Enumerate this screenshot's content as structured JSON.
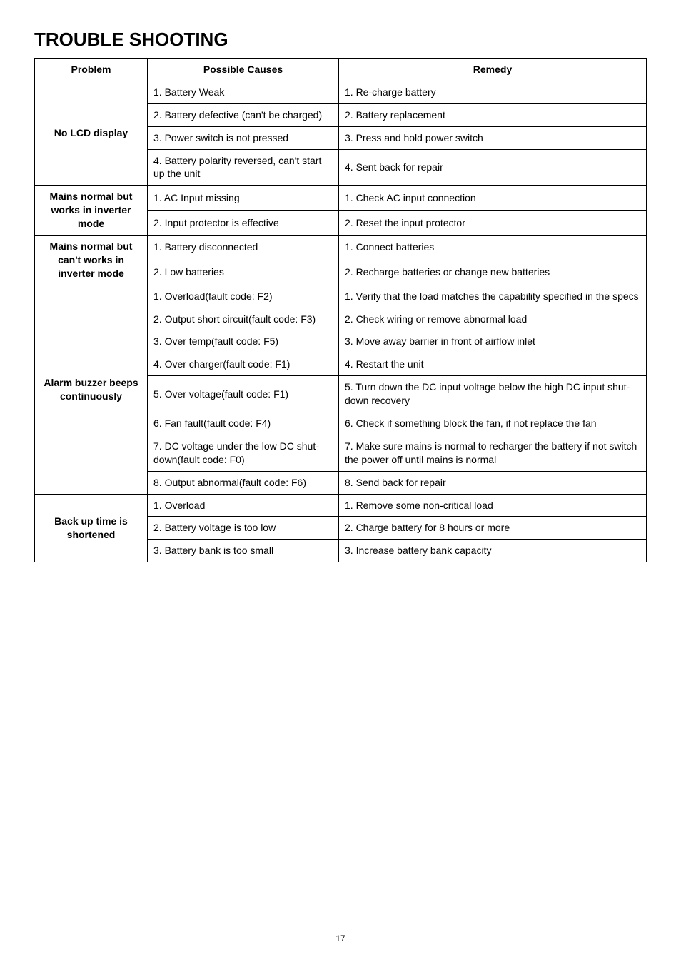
{
  "title": "TROUBLE SHOOTING",
  "headers": {
    "problem": "Problem",
    "causes": "Possible Causes",
    "remedy": "Remedy"
  },
  "sections": [
    {
      "problem": "No LCD display",
      "rows": [
        {
          "cause": "1.  Battery Weak",
          "remedy": "1. Re-charge battery"
        },
        {
          "cause": "2.  Battery defective (can't be charged)",
          "remedy": "2. Battery replacement"
        },
        {
          "cause": "3.  Power switch is not pressed",
          "remedy": "3. Press and hold power switch"
        },
        {
          "cause": "4. Battery polarity reversed, can't start up the unit",
          "remedy": "4. Sent back for repair"
        }
      ]
    },
    {
      "problem": "Mains normal but works in inverter mode",
      "rows": [
        {
          "cause": "1. AC Input missing",
          "remedy": "1. Check AC input connection"
        },
        {
          "cause": "2. Input protector is effective",
          "remedy": "2. Reset the input protector"
        }
      ]
    },
    {
      "problem": "Mains normal but can't works in inverter mode",
      "rows": [
        {
          "cause": "1. Battery disconnected",
          "remedy": "1. Connect batteries"
        },
        {
          "cause": "2. Low batteries",
          "remedy": "2. Recharge batteries or change new batteries"
        }
      ]
    },
    {
      "problem": "Alarm buzzer beeps continuously",
      "rows": [
        {
          "cause": "1. Overload(fault code: F2)",
          "remedy": "1. Verify that the load matches the capability specified in the specs"
        },
        {
          "cause": "2. Output short circuit(fault code: F3)",
          "remedy": "2. Check wiring or remove abnormal load"
        },
        {
          "cause": "3. Over temp(fault code: F5)",
          "remedy": "3. Move away barrier in front of airflow inlet"
        },
        {
          "cause": "4. Over charger(fault code: F1)",
          "remedy": "4. Restart the unit"
        },
        {
          "cause": "5. Over voltage(fault code: F1)",
          "remedy": "5. Turn down the DC input voltage below the high DC input shut-down recovery"
        },
        {
          "cause": "6. Fan fault(fault code: F4)",
          "remedy": "6. Check if something block the fan, if not replace the fan"
        },
        {
          "cause": "7. DC voltage under the low DC shut-down(fault code: F0)",
          "remedy": "7. Make sure mains is normal to recharger the battery if not switch the power off until mains is normal"
        },
        {
          "cause": "8. Output abnormal(fault code: F6)",
          "remedy": "8. Send back for repair"
        }
      ]
    },
    {
      "problem": "Back up time is shortened",
      "rows": [
        {
          "cause": "1. Overload",
          "remedy": "1. Remove some non-critical load"
        },
        {
          "cause": "2. Battery voltage is too low",
          "remedy": "2. Charge battery for 8 hours or more"
        },
        {
          "cause": "3. Battery bank is too small",
          "remedy": "3. Increase battery bank capacity"
        }
      ]
    }
  ],
  "page_number": "17"
}
